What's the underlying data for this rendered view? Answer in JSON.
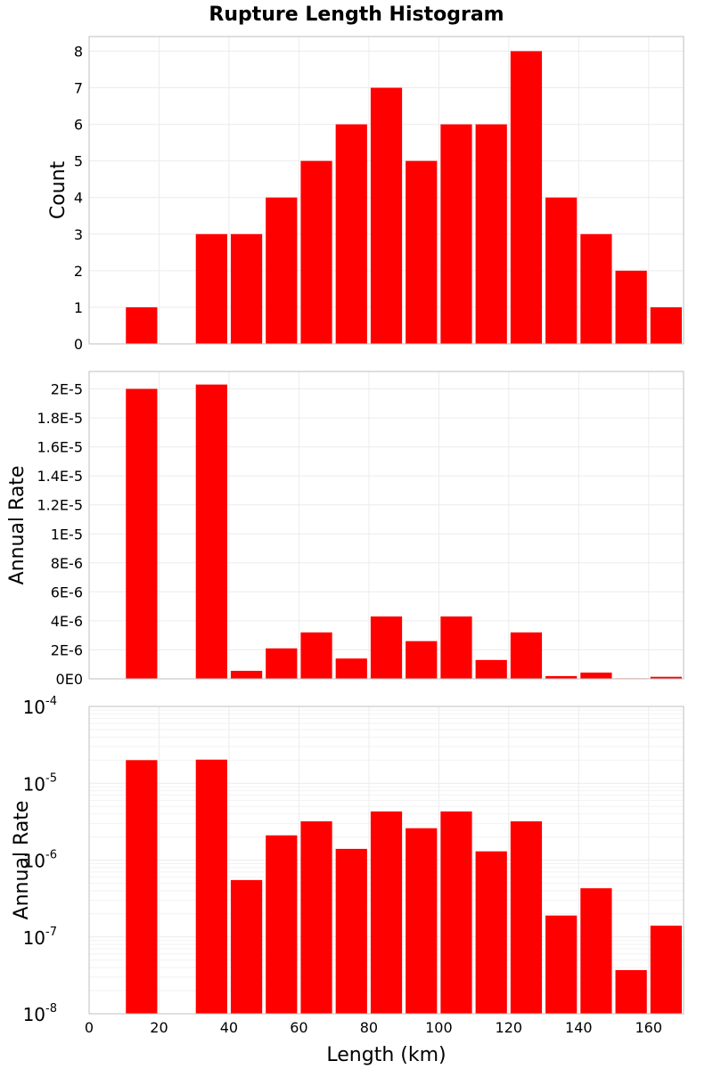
{
  "chart_data": [
    {
      "panel": "top",
      "type": "bar",
      "title": "Rupture Length Histogram",
      "ylabel": "Count",
      "xlabel": "",
      "bar_color": "#ff0000",
      "grid": true,
      "xlim": [
        0,
        170
      ],
      "ylim": [
        0,
        8.4
      ],
      "yticks": [
        "0",
        "1",
        "2",
        "3",
        "4",
        "5",
        "6",
        "7",
        "8"
      ],
      "bin_width": 10,
      "bin_centers": [
        15,
        25,
        35,
        45,
        55,
        65,
        75,
        85,
        95,
        105,
        115,
        125,
        135,
        145,
        155,
        165
      ],
      "values": [
        1,
        0,
        3,
        3,
        4,
        5,
        6,
        7,
        5,
        6,
        6,
        8,
        4,
        3,
        2,
        1
      ]
    },
    {
      "panel": "middle",
      "type": "bar",
      "ylabel": "Annual Rate",
      "xlabel": "",
      "bar_color": "#ff0000",
      "grid": true,
      "xlim": [
        0,
        170
      ],
      "ylim": [
        0,
        2.12e-05
      ],
      "yticks": [
        "0E0",
        "2E-6",
        "4E-6",
        "6E-6",
        "8E-6",
        "1E-5",
        "1.2E-5",
        "1.4E-5",
        "1.6E-5",
        "1.8E-5",
        "2E-5"
      ],
      "bin_width": 10,
      "bin_centers": [
        15,
        25,
        35,
        45,
        55,
        65,
        75,
        85,
        95,
        105,
        115,
        125,
        135,
        145,
        155,
        165
      ],
      "values": [
        2e-05,
        0,
        2.03e-05,
        5.5e-07,
        2.1e-06,
        3.2e-06,
        1.4e-06,
        4.3e-06,
        2.6e-06,
        4.3e-06,
        1.3e-06,
        3.2e-06,
        1.9e-07,
        4.3e-07,
        3.7e-08,
        1.4e-07
      ]
    },
    {
      "panel": "bottom",
      "type": "bar",
      "ylabel": "Annual Rate",
      "xlabel": "Length (km)",
      "bar_color": "#ff0000",
      "grid": true,
      "log_y": true,
      "xlim": [
        0,
        170
      ],
      "ylim": [
        1e-08,
        0.0001
      ],
      "xticks": [
        "0",
        "20",
        "40",
        "60",
        "80",
        "100",
        "120",
        "140",
        "160"
      ],
      "ytick_labels": [
        {
          "base": "10",
          "exp": "-8"
        },
        {
          "base": "10",
          "exp": "-7"
        },
        {
          "base": "10",
          "exp": "-6"
        },
        {
          "base": "10",
          "exp": "-5"
        },
        {
          "base": "10",
          "exp": "-4"
        }
      ],
      "bin_width": 10,
      "bin_centers": [
        15,
        25,
        35,
        45,
        55,
        65,
        75,
        85,
        95,
        105,
        115,
        125,
        135,
        145,
        155,
        165
      ],
      "values": [
        2e-05,
        0,
        2.03e-05,
        5.5e-07,
        2.1e-06,
        3.2e-06,
        1.4e-06,
        4.3e-06,
        2.6e-06,
        4.3e-06,
        1.3e-06,
        3.2e-06,
        1.9e-07,
        4.3e-07,
        3.7e-08,
        1.4e-07
      ]
    }
  ]
}
